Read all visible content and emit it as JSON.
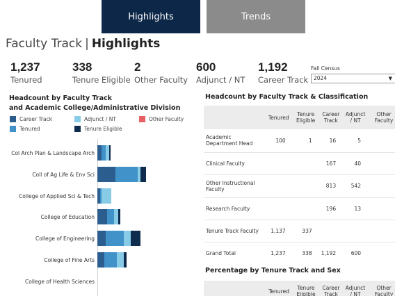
{
  "tabs": {
    "highlights": "Highlights",
    "trends": "Trends"
  },
  "title": {
    "prefix": "Faculty Track",
    "separator": "|",
    "main": "Highlights"
  },
  "kpis": [
    {
      "value": "1,237",
      "label": "Tenured"
    },
    {
      "value": "338",
      "label": "Tenure Eligible"
    },
    {
      "value": "2",
      "label": "Other Faculty"
    },
    {
      "value": "600",
      "label": "Adjunct / NT"
    },
    {
      "value": "1,192",
      "label": "Career Track"
    }
  ],
  "census": {
    "label": "Fall Census",
    "selected": "2024"
  },
  "left_chart": {
    "title_line1": "Headcount by Faculty Track",
    "title_line2": "and Academic College/Administrative Division",
    "legend": {
      "career": "Career Track",
      "adjunct": "Adjunct / NT",
      "other": "Other Faculty",
      "tenured": "Tenured",
      "eligible": "Tenure Eligible"
    },
    "colors": {
      "career": "#2b5d8e",
      "adjunct": "#87cbe7",
      "other": "#e85f64",
      "tenured": "#4192c8",
      "eligible": "#0f2c4f"
    }
  },
  "chart_data": {
    "type": "bar",
    "orientation": "horizontal",
    "stacked": true,
    "categories": [
      "Col Arch Plan & Landscape Arch",
      "Coll of Ag Life & Env Sci",
      "College of Applied Sci & Tech",
      "College of Education",
      "College of Engineering",
      "College of Fine Arts",
      "College of Health Sciences"
    ],
    "series": [
      {
        "name": "Career Track",
        "values": [
          6,
          26,
          4,
          14,
          12,
          10,
          0
        ]
      },
      {
        "name": "Tenured",
        "values": [
          6,
          32,
          2,
          10,
          26,
          18,
          0
        ]
      },
      {
        "name": "Adjunct / NT",
        "values": [
          5,
          4,
          14,
          6,
          10,
          10,
          0
        ]
      },
      {
        "name": "Tenure Eligible",
        "values": [
          2,
          8,
          0,
          3,
          14,
          4,
          0
        ]
      }
    ]
  },
  "table1": {
    "title": "Headcount by Faculty Track & Classification",
    "headers": [
      "Tenured",
      "Tenure Eligible",
      "Career Track",
      "Adjunct / NT",
      "Other Faculty"
    ],
    "rows": [
      {
        "label": "Academic Department Head",
        "cells": [
          "100",
          "1",
          "16",
          "5",
          ""
        ]
      },
      {
        "label": "Clinical Faculty",
        "cells": [
          "",
          "",
          "167",
          "40",
          ""
        ]
      },
      {
        "label": "Other Instructional Faculty",
        "cells": [
          "",
          "",
          "813",
          "542",
          ""
        ]
      },
      {
        "label": "Research Faculty",
        "cells": [
          "",
          "",
          "196",
          "13",
          ""
        ]
      },
      {
        "label": "Tenure Track Faculty",
        "cells": [
          "1,137",
          "337",
          "",
          "",
          ""
        ]
      },
      {
        "label": "Grand Total",
        "cells": [
          "1,237",
          "338",
          "1,192",
          "600",
          ""
        ]
      }
    ]
  },
  "table2": {
    "title": "Percentage by Tenure Track and Sex",
    "headers": [
      "Tenured",
      "Tenure Eligible",
      "Career Track",
      "Adjunct / NT",
      "Other Faculty"
    ]
  }
}
